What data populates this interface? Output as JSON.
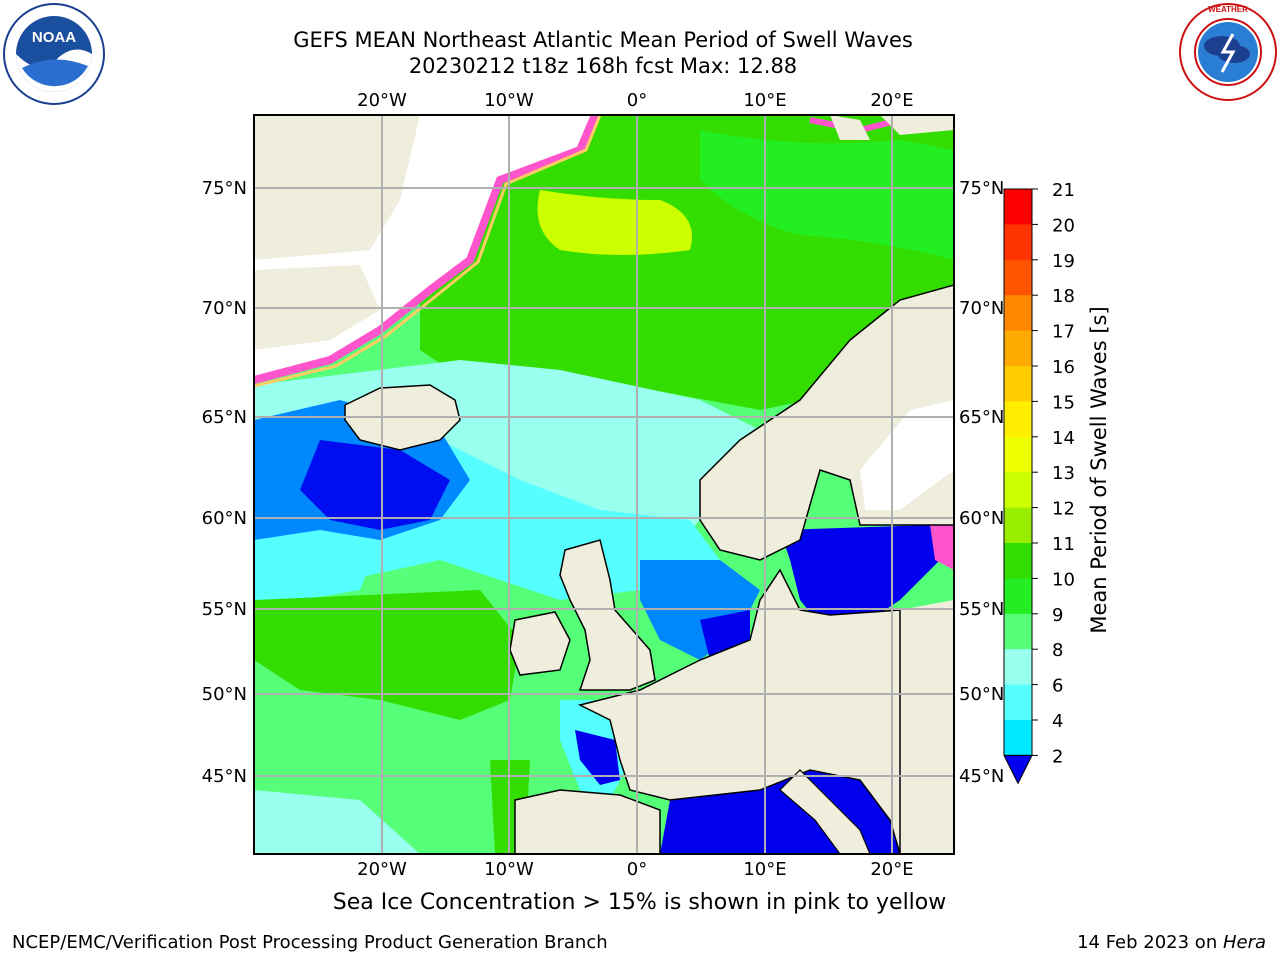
{
  "title": {
    "line1": "GEFS MEAN Northeast Atlantic Mean Period of Swell Waves",
    "line2": "20230212 t18z 168h fcst   Max: 12.88"
  },
  "logos": {
    "left": {
      "name": "noaa-logo",
      "text": "NOAA",
      "ring_text": "NATIONAL OCEANIC AND ATMOSPHERIC ADMINISTRATION · U.S. DEPARTMENT OF COMMERCE"
    },
    "right": {
      "name": "nws-logo",
      "ring_text": "NATIONAL WEATHER SERVICE"
    }
  },
  "map": {
    "lon_ticks_top": [
      "20°W",
      "10°W",
      "0°",
      "10°E",
      "20°E"
    ],
    "lon_ticks_bottom": [
      "20°W",
      "10°W",
      "0°",
      "10°E",
      "20°E"
    ],
    "lat_ticks_left": [
      "75°N",
      "70°N",
      "65°N",
      "60°N",
      "55°N",
      "50°N",
      "45°N"
    ],
    "lat_ticks_right": [
      "75°N",
      "70°N",
      "65°N",
      "60°N",
      "55°N",
      "50°N",
      "45°N"
    ],
    "land_color": "#efeddc",
    "grid_color": "#b0b0b0"
  },
  "colorbar": {
    "label": "Mean Period of Swell Waves [s]",
    "ticks": [
      "21",
      "20",
      "19",
      "18",
      "17",
      "16",
      "15",
      "14",
      "13",
      "12",
      "11",
      "10",
      "9",
      "8",
      "6",
      "4",
      "2"
    ],
    "colors": [
      "#ff0000",
      "#ff3300",
      "#ff5500",
      "#ff8800",
      "#ffaa00",
      "#ffcc00",
      "#ffee00",
      "#eeff00",
      "#ccff00",
      "#99ee00",
      "#33dd00",
      "#22ee22",
      "#55ff77",
      "#99ffee",
      "#55ffff",
      "#00e8ff",
      "#0088ff"
    ],
    "extend_color": "#0000ee"
  },
  "ice_note": "Sea Ice Concentration > 15% is shown in pink to yellow",
  "footer": {
    "left": "NCEP/EMC/Verification Post Processing Product Generation Branch",
    "right_date": "14 Feb 2023 on ",
    "right_host": "Hera"
  }
}
